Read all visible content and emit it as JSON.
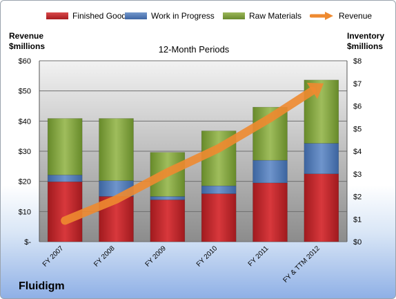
{
  "company": "Fluidigm",
  "chart_data": {
    "type": "bar",
    "subtitle": "12-Month Periods",
    "left_axis_label": [
      "Revenue",
      "$millions"
    ],
    "right_axis_label": [
      "Inventory",
      "$millions"
    ],
    "categories": [
      "FY 2007",
      "FY 2008",
      "FY 2009",
      "FY 2010",
      "FY 2011",
      "FY & TTM 2012"
    ],
    "stacked": true,
    "series": [
      {
        "name": "Finished Goods",
        "axis": "right",
        "values": [
          2.65,
          2.0,
          1.85,
          2.12,
          2.6,
          3.0
        ],
        "color": "#c0262a"
      },
      {
        "name": "Work in Progress",
        "axis": "right",
        "values": [
          0.3,
          0.7,
          0.15,
          0.35,
          1.0,
          1.35
        ],
        "color": "#4f78b5"
      },
      {
        "name": "Raw Materials",
        "axis": "right",
        "values": [
          2.5,
          2.75,
          1.95,
          2.43,
          2.35,
          2.8
        ],
        "color": "#7d9a3a"
      }
    ],
    "line_series": {
      "name": "Revenue",
      "axis": "left",
      "values": [
        7,
        14,
        23,
        31,
        41,
        52
      ],
      "color": "#ee8a30"
    },
    "left_ylim": [
      0,
      60
    ],
    "left_ticks": [
      "$-",
      "$10",
      "$20",
      "$30",
      "$40",
      "$50",
      "$60"
    ],
    "right_ylim": [
      0,
      8
    ],
    "right_ticks": [
      "$0",
      "$1",
      "$2",
      "$3",
      "$4",
      "$5",
      "$6",
      "$7",
      "$8"
    ],
    "grid": true,
    "legend_position": "top"
  }
}
